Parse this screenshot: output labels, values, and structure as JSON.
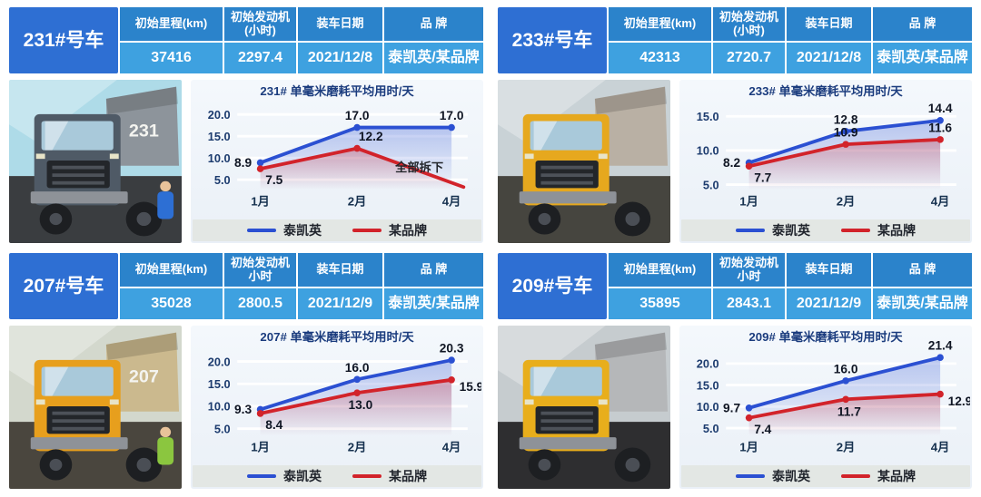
{
  "legend": {
    "series1": "泰凯英",
    "series2": "某品牌",
    "color1": "#2b50d2",
    "color2": "#d2232a"
  },
  "quadrants": [
    {
      "truck_id": "231#号车",
      "headers": [
        "初始里程(km)",
        "初始发动机\n(小时)",
        "装车日期",
        "品 牌"
      ],
      "values": [
        "37416",
        "2297.4",
        "2021/12/8",
        "泰凯英/某品牌"
      ],
      "photo": {
        "number": "231",
        "sky": "#aedbe8",
        "body": "#4f5a66",
        "bed": "#8d949b",
        "person": "#2d6fd4",
        "ground": "#3a3d40"
      }
    },
    {
      "truck_id": "233#号车",
      "headers": [
        "初始里程(km)",
        "初始发动机\n(小时)",
        "装车日期",
        "品 牌"
      ],
      "values": [
        "42313",
        "2720.7",
        "2021/12/8",
        "泰凯英/某品牌"
      ],
      "photo": {
        "number": "",
        "sky": "#c9d2d6",
        "body": "#e6a81e",
        "bed": "#b9b0a4",
        "person": "",
        "ground": "#46453f"
      }
    },
    {
      "truck_id": "207#号车",
      "headers": [
        "初始里程(km)",
        "初始发动机\n小时",
        "装车日期",
        "品 牌"
      ],
      "values": [
        "35028",
        "2800.5",
        "2021/12/9",
        "泰凯英/某品牌"
      ],
      "photo": {
        "number": "207",
        "sky": "#d3d8cd",
        "body": "#e79f1d",
        "bed": "#cbb98e",
        "person": "#8bc63f",
        "ground": "#4a463e"
      }
    },
    {
      "truck_id": "209#号车",
      "headers": [
        "初始里程(km)",
        "初始发动机\n小时",
        "装车日期",
        "品 牌"
      ],
      "values": [
        "35895",
        "2843.1",
        "2021/12/9",
        "泰凯英/某品牌"
      ],
      "photo": {
        "number": "",
        "sky": "#c6cccf",
        "body": "#e8ae1c",
        "bed": "#b5b7b9",
        "person": "",
        "ground": "#2e2e30"
      }
    }
  ],
  "chart_data": [
    {
      "type": "line",
      "title": "231# 单毫米磨耗平均用时/天",
      "categories": [
        "1月",
        "2月",
        "4月"
      ],
      "yticks": [
        20.0,
        15.0,
        10.0,
        5.0
      ],
      "ylim": [
        2.6,
        22.4
      ],
      "legend_position": "bottom",
      "grid": true,
      "series": [
        {
          "name": "泰凯英",
          "color": "#2b50d2",
          "values": [
            8.9,
            17.0,
            17.0
          ],
          "labels": [
            "8.9",
            "17.0",
            "17.0"
          ],
          "label_pos": [
            "left",
            "above",
            "above"
          ]
        },
        {
          "name": "某品牌",
          "color": "#d2232a",
          "values": [
            7.5,
            12.2,
            3.3
          ],
          "labels": [
            "7.5",
            "12.2",
            ""
          ],
          "label_pos": [
            "below-right",
            "above-right",
            ""
          ],
          "overshoot": 14
        }
      ],
      "annotation": {
        "text": "全部拆下",
        "fx": 0.79,
        "v": 6.9
      }
    },
    {
      "type": "line",
      "title": "233# 单毫米磨耗平均用时/天",
      "categories": [
        "1月",
        "2月",
        "4月"
      ],
      "yticks": [
        15.0,
        10.0,
        5.0
      ],
      "ylim": [
        4.2,
        16.8
      ],
      "legend_position": "bottom",
      "grid": true,
      "series": [
        {
          "name": "泰凯英",
          "color": "#2b50d2",
          "values": [
            8.2,
            12.8,
            14.4
          ],
          "labels": [
            "8.2",
            "12.8",
            "14.4"
          ],
          "label_pos": [
            "left",
            "above",
            "above"
          ]
        },
        {
          "name": "某品牌",
          "color": "#d2232a",
          "values": [
            7.7,
            10.9,
            11.6
          ],
          "labels": [
            "7.7",
            "10.9",
            "11.6"
          ],
          "label_pos": [
            "below-right",
            "above",
            "above"
          ]
        }
      ]
    },
    {
      "type": "line",
      "title": "207# 单毫米磨耗平均用时/天",
      "categories": [
        "1月",
        "2月",
        "4月"
      ],
      "yticks": [
        20.0,
        15.0,
        10.0,
        5.0
      ],
      "ylim": [
        3.4,
        22.6
      ],
      "legend_position": "bottom",
      "grid": true,
      "series": [
        {
          "name": "泰凯英",
          "color": "#2b50d2",
          "values": [
            9.3,
            16.0,
            20.3
          ],
          "labels": [
            "9.3",
            "16.0",
            "20.3"
          ],
          "label_pos": [
            "left",
            "above",
            "above"
          ]
        },
        {
          "name": "某品牌",
          "color": "#d2232a",
          "values": [
            8.4,
            13.0,
            15.9
          ],
          "labels": [
            "8.4",
            "13.0",
            "15.9"
          ],
          "label_pos": [
            "below-right",
            "below",
            "right-below"
          ]
        }
      ]
    },
    {
      "type": "line",
      "title": "209# 单毫米磨耗平均用时/天",
      "categories": [
        "1月",
        "2月",
        "4月"
      ],
      "yticks": [
        20.0,
        15.0,
        10.0,
        5.0
      ],
      "ylim": [
        3.2,
        23.2
      ],
      "legend_position": "bottom",
      "grid": true,
      "series": [
        {
          "name": "泰凯英",
          "color": "#2b50d2",
          "values": [
            9.7,
            16.0,
            21.4
          ],
          "labels": [
            "9.7",
            "16.0",
            "21.4"
          ],
          "label_pos": [
            "left",
            "above",
            "above"
          ]
        },
        {
          "name": "某品牌",
          "color": "#d2232a",
          "values": [
            7.4,
            11.7,
            12.9
          ],
          "labels": [
            "7.4",
            "11.7",
            "12.9"
          ],
          "label_pos": [
            "below-right",
            "below",
            "right-below"
          ]
        }
      ]
    }
  ]
}
